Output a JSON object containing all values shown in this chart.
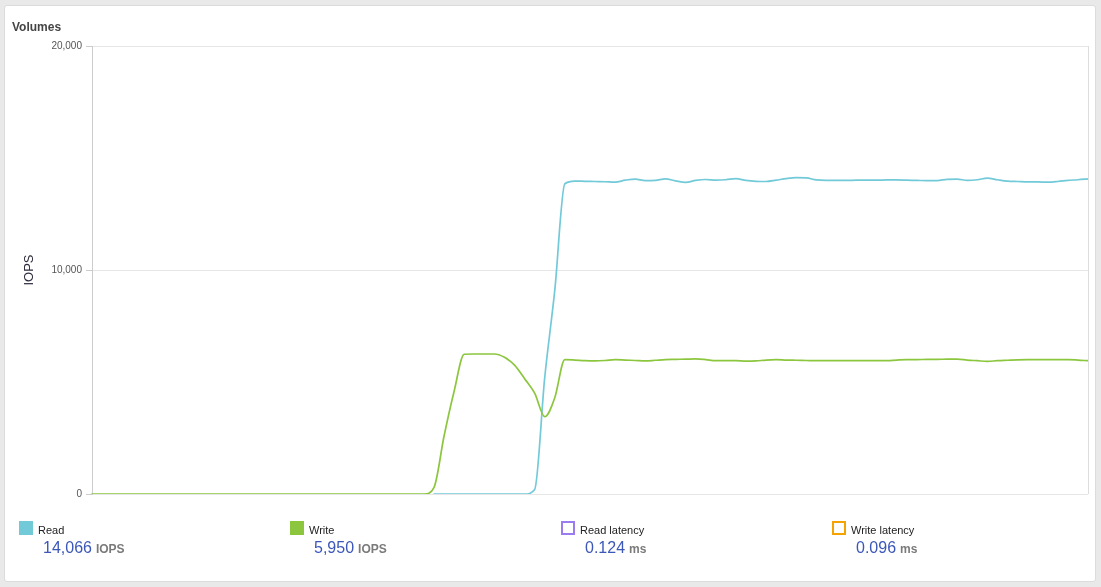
{
  "chart_data": {
    "type": "line",
    "title": "Volumes",
    "ylabel": "IOPS",
    "categories": [
      null,
      null,
      null,
      null,
      null,
      null,
      null,
      null,
      null,
      null,
      null,
      null,
      null,
      null,
      null,
      null,
      null,
      null,
      null,
      null,
      null,
      null,
      null,
      null,
      null,
      null,
      null,
      null,
      null,
      null,
      null,
      null,
      null,
      null,
      null,
      null,
      null,
      null,
      null,
      null,
      null,
      null,
      null,
      null,
      null,
      null,
      null,
      null,
      null,
      null,
      null,
      null,
      null,
      null,
      null,
      null,
      null,
      null,
      null,
      null,
      null,
      null,
      null,
      null,
      null,
      null,
      null,
      null,
      null,
      null,
      null,
      null,
      null,
      null,
      null,
      null,
      null,
      null,
      null,
      null,
      null,
      null,
      null,
      null,
      null,
      null,
      null,
      null,
      null,
      null,
      null,
      null,
      null,
      null,
      null,
      null,
      null,
      null,
      null,
      null
    ],
    "series": [
      {
        "name": "Read",
        "color": "#72cad9",
        "values": [
          null,
          null,
          null,
          null,
          null,
          null,
          null,
          null,
          null,
          null,
          null,
          null,
          null,
          null,
          null,
          null,
          null,
          null,
          null,
          null,
          null,
          null,
          null,
          null,
          null,
          null,
          null,
          null,
          null,
          null,
          null,
          null,
          null,
          null,
          0,
          0,
          0,
          0,
          0,
          0,
          0,
          0,
          0,
          0,
          200,
          5200,
          9100,
          13850,
          13970,
          13960,
          13950,
          13940,
          13920,
          14010,
          14060,
          13990,
          14000,
          14070,
          13980,
          13910,
          14000,
          14040,
          14010,
          14030,
          14080,
          14000,
          13960,
          13950,
          14010,
          14080,
          14120,
          14110,
          14020,
          14000,
          14000,
          14000,
          14010,
          14010,
          14010,
          14020,
          14020,
          14010,
          14000,
          13990,
          13990,
          14050,
          14060,
          14000,
          14030,
          14100,
          14030,
          13970,
          13950,
          13930,
          13930,
          13920,
          13950,
          14000,
          14030,
          14070
        ]
      },
      {
        "name": "Write",
        "color": "#8cc63f",
        "values": [
          0,
          0,
          0,
          0,
          0,
          0,
          0,
          0,
          0,
          0,
          0,
          0,
          0,
          0,
          0,
          0,
          0,
          0,
          0,
          0,
          0,
          0,
          0,
          0,
          0,
          0,
          0,
          0,
          0,
          0,
          0,
          0,
          0,
          0,
          300,
          2600,
          4600,
          6240,
          6250,
          6250,
          6250,
          6100,
          5750,
          5150,
          4500,
          3450,
          4300,
          6000,
          5980,
          5950,
          5940,
          5960,
          6000,
          5980,
          5960,
          5940,
          5970,
          6000,
          6010,
          6020,
          6030,
          6000,
          5950,
          5950,
          5950,
          5930,
          5940,
          5980,
          6000,
          5980,
          5970,
          5960,
          5950,
          5950,
          5950,
          5950,
          5950,
          5950,
          5950,
          5950,
          5980,
          6000,
          6000,
          6010,
          6010,
          6020,
          6020,
          5980,
          5950,
          5920,
          5950,
          5970,
          5990,
          6000,
          6000,
          6000,
          6000,
          6000,
          5980,
          5950
        ]
      },
      {
        "name": "Read latency",
        "color": "#9b7cf0",
        "values": [
          null,
          null,
          null,
          null,
          null,
          null,
          null,
          null,
          null,
          null,
          null,
          null,
          null,
          null,
          null,
          null,
          null,
          null,
          null,
          null,
          null,
          null,
          null,
          null,
          null,
          null,
          null,
          null,
          null,
          null,
          null,
          null,
          null,
          null,
          null,
          null,
          null,
          null,
          null,
          null,
          null,
          null,
          null,
          null,
          null,
          null,
          null,
          null,
          null,
          null,
          null,
          null,
          null,
          null,
          null,
          null,
          null,
          null,
          null,
          null,
          null,
          null,
          null,
          null,
          null,
          null,
          null,
          null,
          null,
          null,
          null,
          null,
          null,
          null,
          null,
          null,
          null,
          null,
          null,
          null,
          null,
          null,
          null,
          null,
          null,
          null,
          null,
          null,
          null,
          null,
          null,
          null,
          null,
          null,
          null,
          null,
          null,
          null,
          null,
          null
        ]
      },
      {
        "name": "Write latency",
        "color": "#f5a300",
        "values": [
          null,
          null,
          null,
          null,
          null,
          null,
          null,
          null,
          null,
          null,
          null,
          null,
          null,
          null,
          null,
          null,
          null,
          null,
          null,
          null,
          null,
          null,
          null,
          null,
          null,
          null,
          null,
          null,
          null,
          null,
          null,
          null,
          null,
          null,
          null,
          null,
          null,
          null,
          null,
          null,
          null,
          null,
          null,
          null,
          null,
          null,
          null,
          null,
          null,
          null,
          null,
          null,
          null,
          null,
          null,
          null,
          null,
          null,
          null,
          null,
          null,
          null,
          null,
          null,
          null,
          null,
          null,
          null,
          null,
          null,
          null,
          null,
          null,
          null,
          null,
          null,
          null,
          null,
          null,
          null,
          null,
          null,
          null,
          null,
          null,
          null,
          null,
          null,
          null,
          null,
          null,
          null,
          null,
          null,
          null,
          null,
          null,
          null,
          null,
          null
        ]
      }
    ],
    "ylim": [
      0,
      20000
    ],
    "yticks": [
      0,
      {
        "value": 10000,
        "label": "10,000"
      },
      {
        "value": 20000,
        "label": "20,000"
      }
    ],
    "grid": "y",
    "legend": "bottom",
    "marker": "none",
    "line_style": "solid",
    "annotations": [
      "14,066 IOPS",
      "5,950 IOPS",
      "0.124 ms",
      "0.096 ms"
    ]
  }
}
